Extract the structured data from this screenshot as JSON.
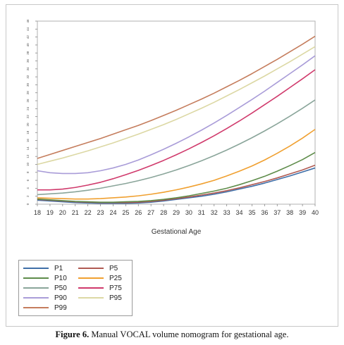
{
  "chart_data": {
    "type": "line",
    "xlabel": "Gestational Age",
    "ylabel": "",
    "x": [
      18,
      19,
      20,
      21,
      22,
      23,
      24,
      25,
      26,
      27,
      28,
      29,
      30,
      31,
      32,
      33,
      34,
      35,
      36,
      37,
      38,
      39,
      40
    ],
    "xlim": [
      18,
      40
    ],
    "ylim": [
      0,
      46
    ],
    "yticks": [
      0,
      2,
      4,
      6,
      8,
      10,
      12,
      14,
      16,
      18,
      20,
      22,
      24,
      26,
      28,
      30,
      32,
      34,
      36,
      38,
      40,
      42,
      44,
      46
    ],
    "legend_position": "bottom-left",
    "series": [
      {
        "name": "P1",
        "color": "#3f6fa8",
        "values": [
          1.0,
          0.8,
          0.6,
          0.4,
          0.3,
          0.2,
          0.2,
          0.2,
          0.3,
          0.5,
          0.8,
          1.2,
          1.6,
          2.0,
          2.5,
          3.1,
          3.8,
          4.5,
          5.3,
          6.2,
          7.1,
          8.1,
          9.1
        ]
      },
      {
        "name": "P5",
        "color": "#b05a52",
        "values": [
          1.2,
          1.0,
          0.8,
          0.6,
          0.5,
          0.4,
          0.4,
          0.4,
          0.5,
          0.7,
          1.0,
          1.4,
          1.8,
          2.3,
          2.8,
          3.4,
          4.1,
          4.9,
          5.7,
          6.6,
          7.6,
          8.6,
          9.8
        ]
      },
      {
        "name": "P10",
        "color": "#5e8c4a",
        "values": [
          1.3,
          1.1,
          0.9,
          0.7,
          0.6,
          0.5,
          0.5,
          0.6,
          0.7,
          0.9,
          1.2,
          1.6,
          2.1,
          2.7,
          3.3,
          4.0,
          4.9,
          5.9,
          7.0,
          8.3,
          9.7,
          11.2,
          13.0
        ]
      },
      {
        "name": "P25",
        "color": "#f0a030",
        "values": [
          1.6,
          1.5,
          1.4,
          1.3,
          1.3,
          1.4,
          1.6,
          1.8,
          2.1,
          2.5,
          3.0,
          3.6,
          4.3,
          5.1,
          6.0,
          7.1,
          8.3,
          9.6,
          11.1,
          12.8,
          14.6,
          16.6,
          18.8
        ]
      },
      {
        "name": "P50",
        "color": "#8aa59a",
        "values": [
          2.4,
          2.6,
          2.8,
          3.1,
          3.5,
          4.0,
          4.6,
          5.2,
          5.9,
          6.7,
          7.6,
          8.6,
          9.7,
          10.9,
          12.2,
          13.6,
          15.1,
          16.7,
          18.4,
          20.2,
          22.1,
          24.1,
          26.2
        ]
      },
      {
        "name": "P75",
        "color": "#d03a6c",
        "values": [
          3.6,
          3.6,
          3.8,
          4.2,
          4.8,
          5.5,
          6.4,
          7.4,
          8.5,
          9.7,
          11.0,
          12.4,
          13.9,
          15.5,
          17.2,
          19.0,
          20.9,
          22.9,
          25.0,
          27.1,
          29.3,
          31.5,
          33.8
        ]
      },
      {
        "name": "P90",
        "color": "#a99cd8",
        "values": [
          8.4,
          7.9,
          7.7,
          7.7,
          7.9,
          8.4,
          9.1,
          10.0,
          11.1,
          12.4,
          13.8,
          15.3,
          16.9,
          18.6,
          20.4,
          22.3,
          24.3,
          26.3,
          28.4,
          30.6,
          32.8,
          35.0,
          37.3
        ]
      },
      {
        "name": "P95",
        "color": "#dcd8a4",
        "values": [
          10.0,
          10.8,
          11.6,
          12.5,
          13.4,
          14.4,
          15.4,
          16.5,
          17.6,
          18.8,
          20.0,
          21.3,
          22.7,
          24.1,
          25.6,
          27.2,
          28.8,
          30.5,
          32.2,
          34.0,
          35.8,
          37.7,
          39.6
        ]
      },
      {
        "name": "P99",
        "color": "#c57d5d",
        "values": [
          11.5,
          12.5,
          13.5,
          14.5,
          15.5,
          16.5,
          17.6,
          18.7,
          19.8,
          21.0,
          22.3,
          23.6,
          25.0,
          26.4,
          27.9,
          29.5,
          31.1,
          32.8,
          34.6,
          36.4,
          38.3,
          40.2,
          42.2
        ]
      }
    ]
  },
  "caption": {
    "label": "Figure 6.",
    "text": " Manual VOCAL volume nomogram for gestational age."
  }
}
